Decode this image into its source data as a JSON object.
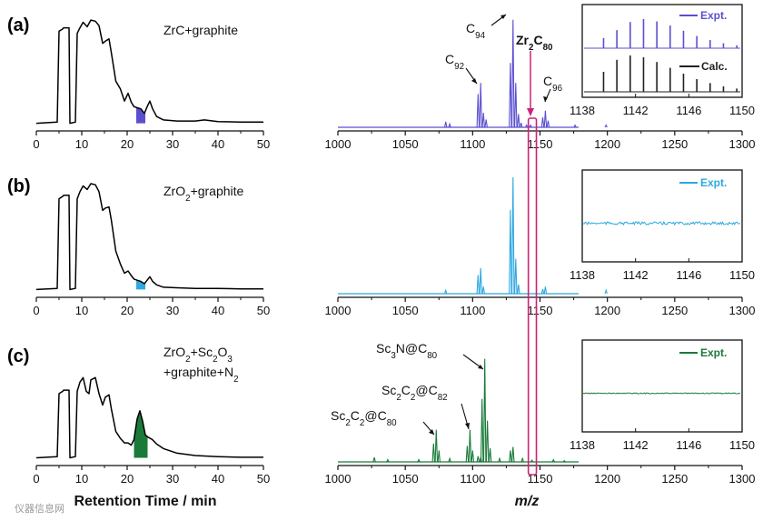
{
  "chart_data": [
    {
      "id": "a",
      "panel_label": "(a)",
      "hplc": {
        "type": "line",
        "sample_label": {
          "base": "ZrC+graphite"
        },
        "xlim": [
          0,
          50
        ],
        "xticks": [
          "0",
          "10",
          "20",
          "30",
          "40",
          "50"
        ],
        "collected_fraction": [
          22,
          24
        ],
        "fraction_color": "#5b4fd0",
        "trace": [
          [
            0,
            0.02
          ],
          [
            4.6,
            0.03
          ],
          [
            5.0,
            0.85
          ],
          [
            5.8,
            0.87
          ],
          [
            6.0,
            0.88
          ],
          [
            7.2,
            0.88
          ],
          [
            7.4,
            0.02
          ],
          [
            8.6,
            0.03
          ],
          [
            9.0,
            0.83
          ],
          [
            9.6,
            0.88
          ],
          [
            10.3,
            0.93
          ],
          [
            11.2,
            0.89
          ],
          [
            12.0,
            0.95
          ],
          [
            13.0,
            0.94
          ],
          [
            13.8,
            0.9
          ],
          [
            14.6,
            0.74
          ],
          [
            15.2,
            0.76
          ],
          [
            16.0,
            0.78
          ],
          [
            16.5,
            0.66
          ],
          [
            17.5,
            0.4
          ],
          [
            18.5,
            0.33
          ],
          [
            19.4,
            0.22
          ],
          [
            20.2,
            0.29
          ],
          [
            20.9,
            0.21
          ],
          [
            21.5,
            0.17
          ],
          [
            22.2,
            0.16
          ],
          [
            23.0,
            0.15
          ],
          [
            23.8,
            0.11
          ],
          [
            24.4,
            0.17
          ],
          [
            25.0,
            0.22
          ],
          [
            25.6,
            0.15
          ],
          [
            26.5,
            0.08
          ],
          [
            28,
            0.05
          ],
          [
            31,
            0.04
          ],
          [
            35,
            0.04
          ],
          [
            37,
            0.05
          ],
          [
            38,
            0.045
          ],
          [
            40,
            0.035
          ],
          [
            45,
            0.03
          ],
          [
            50,
            0.03
          ]
        ]
      },
      "ms": {
        "type": "line",
        "xlim": [
          1000,
          1300
        ],
        "xticks": [
          "1000",
          "1050",
          "1100",
          "1150",
          "1200",
          "1250",
          "1300"
        ],
        "color": "#5b4fd0",
        "peaks": [
          [
            1080,
            0.05
          ],
          [
            1083,
            0.03
          ],
          [
            1104,
            0.3
          ],
          [
            1106,
            0.4
          ],
          [
            1108,
            0.13
          ],
          [
            1110,
            0.07
          ],
          [
            1128,
            0.58
          ],
          [
            1130,
            0.97
          ],
          [
            1132,
            0.4
          ],
          [
            1134,
            0.12
          ],
          [
            1136,
            0.04
          ],
          [
            1140,
            0.02
          ],
          [
            1143,
            0.02
          ],
          [
            1152,
            0.09
          ],
          [
            1154,
            0.15
          ],
          [
            1156,
            0.06
          ],
          [
            1176,
            0.02
          ],
          [
            1199,
            0.02
          ]
        ],
        "annotations": [
          {
            "base": "C",
            "sub": "94",
            "x": 1130
          },
          {
            "base": "C",
            "sub": "92",
            "x": 1104
          },
          {
            "base": "C",
            "sub": "96",
            "x": 1152
          }
        ],
        "target": {
          "parts": [
            "Zr",
            "2",
            "C",
            "80"
          ],
          "color": "#cc2277",
          "x": 1144
        }
      },
      "inset": {
        "xlim": [
          1138,
          1150
        ],
        "xticks": [
          "1138",
          "1142",
          "1146",
          "1150"
        ],
        "series": [
          {
            "name": "Expt.",
            "color": "#5b4fd0",
            "peaks": [
              [
                1139.6,
                0.35
              ],
              [
                1140.6,
                0.62
              ],
              [
                1141.6,
                0.9
              ],
              [
                1142.6,
                1.0
              ],
              [
                1143.6,
                0.92
              ],
              [
                1144.6,
                0.78
              ],
              [
                1145.6,
                0.6
              ],
              [
                1146.6,
                0.42
              ],
              [
                1147.6,
                0.28
              ],
              [
                1148.6,
                0.17
              ],
              [
                1149.6,
                0.1
              ]
            ]
          },
          {
            "name": "Calc.",
            "color": "#222222",
            "peaks": [
              [
                1139.6,
                0.55
              ],
              [
                1140.6,
                0.88
              ],
              [
                1141.6,
                1.0
              ],
              [
                1142.6,
                0.95
              ],
              [
                1143.6,
                0.82
              ],
              [
                1144.6,
                0.66
              ],
              [
                1145.6,
                0.5
              ],
              [
                1146.6,
                0.35
              ],
              [
                1147.6,
                0.24
              ],
              [
                1148.6,
                0.15
              ],
              [
                1149.6,
                0.09
              ]
            ]
          }
        ]
      }
    },
    {
      "id": "b",
      "panel_label": "(b)",
      "hplc": {
        "type": "line",
        "sample_label": {
          "parts": [
            "ZrO",
            "2",
            "+graphite"
          ]
        },
        "xlim": [
          0,
          50
        ],
        "xticks": [
          "0",
          "10",
          "20",
          "30",
          "40",
          "50"
        ],
        "collected_fraction": [
          22,
          24
        ],
        "fraction_color": "#2ea8e0",
        "trace": [
          [
            0,
            0.02
          ],
          [
            4.6,
            0.03
          ],
          [
            5.0,
            0.8
          ],
          [
            5.8,
            0.82
          ],
          [
            6.0,
            0.83
          ],
          [
            7.2,
            0.83
          ],
          [
            7.4,
            0.02
          ],
          [
            8.6,
            0.03
          ],
          [
            9.0,
            0.8
          ],
          [
            9.6,
            0.86
          ],
          [
            10.3,
            0.91
          ],
          [
            11.2,
            0.88
          ],
          [
            12.0,
            0.93
          ],
          [
            13.0,
            0.92
          ],
          [
            13.8,
            0.86
          ],
          [
            14.6,
            0.7
          ],
          [
            15.2,
            0.72
          ],
          [
            16.0,
            0.73
          ],
          [
            16.5,
            0.62
          ],
          [
            17.5,
            0.35
          ],
          [
            18.5,
            0.24
          ],
          [
            19.4,
            0.16
          ],
          [
            20.2,
            0.18
          ],
          [
            20.9,
            0.14
          ],
          [
            21.5,
            0.11
          ],
          [
            22.2,
            0.1
          ],
          [
            23.0,
            0.09
          ],
          [
            23.8,
            0.07
          ],
          [
            24.4,
            0.1
          ],
          [
            25.0,
            0.13
          ],
          [
            25.6,
            0.09
          ],
          [
            26.5,
            0.06
          ],
          [
            28,
            0.04
          ],
          [
            31,
            0.035
          ],
          [
            35,
            0.03
          ],
          [
            40,
            0.03
          ],
          [
            45,
            0.025
          ],
          [
            50,
            0.025
          ]
        ]
      },
      "ms": {
        "type": "line",
        "xlim": [
          1000,
          1300
        ],
        "xticks": [
          "1000",
          "1050",
          "1100",
          "1150",
          "1200",
          "1250",
          "1300"
        ],
        "color": "#2ea8e0",
        "peaks": [
          [
            1080,
            0.03
          ],
          [
            1104,
            0.16
          ],
          [
            1106,
            0.22
          ],
          [
            1108,
            0.06
          ],
          [
            1128,
            0.72
          ],
          [
            1130,
            1.0
          ],
          [
            1132,
            0.3
          ],
          [
            1134,
            0.08
          ],
          [
            1152,
            0.04
          ],
          [
            1154,
            0.06
          ],
          [
            1199,
            0.03
          ]
        ]
      },
      "inset": {
        "xlim": [
          1138,
          1150
        ],
        "xticks": [
          "1138",
          "1142",
          "1146",
          "1150"
        ],
        "series": [
          {
            "name": "Expt.",
            "color": "#2ea8e0",
            "peaks": []
          }
        ]
      }
    },
    {
      "id": "c",
      "panel_label": "(c)",
      "hplc": {
        "type": "line",
        "sample_label": {
          "parts": [
            "ZrO",
            "2",
            "+Sc",
            "2",
            "O",
            "3"
          ],
          "line2": [
            "+graphite+N",
            "2"
          ]
        },
        "xlim": [
          0,
          50
        ],
        "xticks": [
          "0",
          "10",
          "20",
          "30",
          "40",
          "50"
        ],
        "collected_fraction": [
          21.5,
          24.5
        ],
        "fraction_color": "#1a7a3a",
        "trace": [
          [
            0,
            0.02
          ],
          [
            4.6,
            0.03
          ],
          [
            5.0,
            0.58
          ],
          [
            5.8,
            0.6
          ],
          [
            6.0,
            0.61
          ],
          [
            7.2,
            0.61
          ],
          [
            7.4,
            0.02
          ],
          [
            8.6,
            0.03
          ],
          [
            9.0,
            0.6
          ],
          [
            9.6,
            0.68
          ],
          [
            10.3,
            0.72
          ],
          [
            11.0,
            0.6
          ],
          [
            11.6,
            0.58
          ],
          [
            12.0,
            0.7
          ],
          [
            13.0,
            0.72
          ],
          [
            13.8,
            0.58
          ],
          [
            14.6,
            0.48
          ],
          [
            15.2,
            0.55
          ],
          [
            16.0,
            0.57
          ],
          [
            16.5,
            0.45
          ],
          [
            17.5,
            0.25
          ],
          [
            18.5,
            0.19
          ],
          [
            19.4,
            0.15
          ],
          [
            20.2,
            0.15
          ],
          [
            20.9,
            0.13
          ],
          [
            21.5,
            0.18
          ],
          [
            22.2,
            0.36
          ],
          [
            22.8,
            0.43
          ],
          [
            23.4,
            0.34
          ],
          [
            24.0,
            0.22
          ],
          [
            24.6,
            0.2
          ],
          [
            25.5,
            0.18
          ],
          [
            26.5,
            0.14
          ],
          [
            28,
            0.1
          ],
          [
            31,
            0.06
          ],
          [
            35,
            0.04
          ],
          [
            40,
            0.03
          ],
          [
            45,
            0.025
          ],
          [
            50,
            0.025
          ]
        ]
      },
      "ms": {
        "type": "line",
        "xlim": [
          1000,
          1300
        ],
        "xticks": [
          "1000",
          "1050",
          "1100",
          "1150",
          "1200",
          "1250",
          "1300"
        ],
        "color": "#1a7a3a",
        "peaks": [
          [
            1027,
            0.04
          ],
          [
            1037,
            0.02
          ],
          [
            1060,
            0.02
          ],
          [
            1071,
            0.16
          ],
          [
            1073,
            0.28
          ],
          [
            1075,
            0.1
          ],
          [
            1083,
            0.03
          ],
          [
            1096,
            0.14
          ],
          [
            1098,
            0.28
          ],
          [
            1100,
            0.1
          ],
          [
            1104,
            0.05
          ],
          [
            1106,
            0.04
          ],
          [
            1107,
            0.55
          ],
          [
            1109,
            0.9
          ],
          [
            1111,
            0.36
          ],
          [
            1113,
            0.12
          ],
          [
            1120,
            0.03
          ],
          [
            1128,
            0.1
          ],
          [
            1130,
            0.13
          ],
          [
            1137,
            0.03
          ],
          [
            1144,
            0.015
          ],
          [
            1160,
            0.02
          ],
          [
            1168,
            0.01
          ]
        ],
        "annotations": [
          {
            "parts": [
              "Sc",
              "3",
              "N@C",
              "80"
            ],
            "x": 1109
          },
          {
            "parts": [
              "Sc",
              "2",
              "C",
              "2",
              "@C",
              "82"
            ],
            "x": 1098
          },
          {
            "parts": [
              "Sc",
              "2",
              "C",
              "2",
              "@C",
              "80"
            ],
            "x": 1073
          }
        ]
      },
      "inset": {
        "xlim": [
          1138,
          1150
        ],
        "xticks": [
          "1138",
          "1142",
          "1146",
          "1150"
        ],
        "series": [
          {
            "name": "Expt.",
            "color": "#1a7a3a",
            "peaks": []
          }
        ]
      }
    }
  ],
  "shared": {
    "hplc_xlabel": "Retention Time / min",
    "ms_xlabel": "m/z",
    "watermark": "仪器信息网"
  }
}
